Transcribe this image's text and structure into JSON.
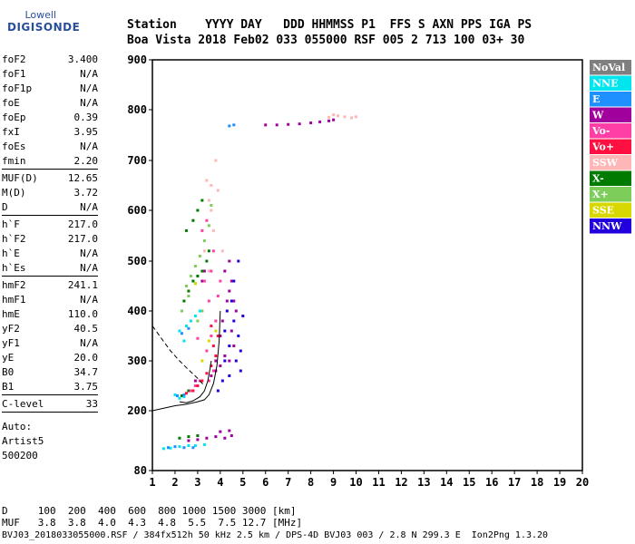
{
  "logo": {
    "line1": "Lowell",
    "line2": "DIGISONDE"
  },
  "header": {
    "line1": "Station    YYYY DAY   DDD HHMMSS P1  FFS S AXN PPS IGA PS",
    "line2": "Boa Vista 2018 Feb02 033 055000 RSF 005 2 713 100 03+ 30"
  },
  "params_a": [
    {
      "k": "foF2",
      "v": "3.400"
    },
    {
      "k": "foF1",
      "v": "N/A"
    },
    {
      "k": "foF1p",
      "v": "N/A"
    },
    {
      "k": "foE",
      "v": "N/A"
    },
    {
      "k": "foEp",
      "v": "0.39"
    },
    {
      "k": "fxI",
      "v": "3.95"
    },
    {
      "k": "foEs",
      "v": "N/A"
    },
    {
      "k": "fmin",
      "v": "2.20"
    }
  ],
  "params_b": [
    {
      "k": "MUF(D)",
      "v": "12.65"
    },
    {
      "k": "M(D)",
      "v": "3.72"
    },
    {
      "k": "D",
      "v": "N/A"
    }
  ],
  "params_c": [
    {
      "k": "h`F",
      "v": "217.0"
    },
    {
      "k": "h`F2",
      "v": "217.0"
    },
    {
      "k": "h`E",
      "v": "N/A"
    },
    {
      "k": "h`Es",
      "v": "N/A"
    }
  ],
  "params_d": [
    {
      "k": "hmF2",
      "v": "241.1"
    },
    {
      "k": "hmF1",
      "v": "N/A"
    },
    {
      "k": "hmE",
      "v": "110.0"
    },
    {
      "k": "yF2",
      "v": "40.5"
    },
    {
      "k": "yF1",
      "v": "N/A"
    },
    {
      "k": "yE",
      "v": "20.0"
    },
    {
      "k": "B0",
      "v": "34.7"
    },
    {
      "k": "B1",
      "v": "3.75"
    }
  ],
  "clevel": {
    "k": "C-level",
    "v": "33"
  },
  "auto": {
    "l1": "Auto:",
    "l2": "Artist5",
    "l3": "500200"
  },
  "footer": {
    "d_row": "D     100  200  400  600  800 1000 1500 3000 [km]",
    "muf_row": "MUF   3.8  3.8  4.0  4.3  4.8  5.5  7.5 12.7 [MHz]",
    "info": "BVJ03_2018033055000.RSF / 384fx512h 50 kHz 2.5 km / DPS-4D BVJ03 003 / 2.8 N 299.3 E  Ion2Png 1.3.20"
  },
  "legend": [
    {
      "label": "NoVal",
      "color": "#7f7f7f"
    },
    {
      "label": "NNE",
      "color": "#00e5ee"
    },
    {
      "label": "E",
      "color": "#1e90ff"
    },
    {
      "label": "W",
      "color": "#a0009b"
    },
    {
      "label": "Vo-",
      "color": "#ff3fa6"
    },
    {
      "label": "Vo+",
      "color": "#ff1040"
    },
    {
      "label": "SSW",
      "color": "#ffb6b6"
    },
    {
      "label": "X-",
      "color": "#007b00"
    },
    {
      "label": "X+",
      "color": "#7ccd5a"
    },
    {
      "label": "SSE",
      "color": "#d8d800"
    },
    {
      "label": "NNW",
      "color": "#2200dd"
    }
  ],
  "chart_data": {
    "type": "scatter",
    "xlim": [
      1,
      20
    ],
    "ylim": [
      80,
      900
    ],
    "x_ticks": [
      1,
      2,
      3,
      4,
      5,
      6,
      7,
      8,
      9,
      10,
      11,
      12,
      13,
      14,
      15,
      16,
      17,
      18,
      19,
      20
    ],
    "y_ticks": [
      80,
      200,
      300,
      400,
      500,
      600,
      700,
      800,
      900
    ],
    "series": [
      {
        "name": "W",
        "color": "#a0009b",
        "points": [
          [
            6.0,
            770
          ],
          [
            6.5,
            770
          ],
          [
            7.0,
            771
          ],
          [
            7.5,
            772
          ],
          [
            8.0,
            774
          ],
          [
            8.4,
            776
          ],
          [
            8.8,
            778
          ],
          [
            9.0,
            780
          ],
          [
            3.8,
            300
          ],
          [
            4.0,
            350
          ],
          [
            4.1,
            380
          ],
          [
            4.3,
            420
          ],
          [
            4.4,
            440
          ],
          [
            4.5,
            460
          ],
          [
            4.6,
            420
          ],
          [
            4.5,
            360
          ],
          [
            4.7,
            400
          ],
          [
            4.2,
            310
          ],
          [
            4.4,
            300
          ],
          [
            4.6,
            330
          ],
          [
            3.6,
            270
          ],
          [
            3.8,
            280
          ],
          [
            4.0,
            290
          ],
          [
            4.2,
            480
          ],
          [
            4.4,
            500
          ],
          [
            2.6,
            140
          ],
          [
            3.0,
            142
          ],
          [
            3.4,
            145
          ],
          [
            3.8,
            148
          ],
          [
            4.2,
            145
          ],
          [
            4.5,
            150
          ],
          [
            4.4,
            160
          ],
          [
            4.0,
            158
          ],
          [
            2.9,
            260
          ],
          [
            3.2,
            460
          ],
          [
            3.3,
            480
          ]
        ]
      },
      {
        "name": "SSW",
        "color": "#ffb6b6",
        "points": [
          [
            8.8,
            785
          ],
          [
            9.0,
            790
          ],
          [
            9.2,
            788
          ],
          [
            9.5,
            786
          ],
          [
            9.8,
            784
          ],
          [
            10.0,
            786
          ],
          [
            3.5,
            620
          ],
          [
            3.6,
            650
          ],
          [
            3.8,
            700
          ],
          [
            3.7,
            560
          ],
          [
            3.3,
            520
          ],
          [
            3.5,
            480
          ],
          [
            3.6,
            600
          ],
          [
            3.9,
            640
          ],
          [
            3.4,
            660
          ],
          [
            4.1,
            520
          ]
        ]
      },
      {
        "name": "NNW",
        "color": "#2200dd",
        "points": [
          [
            4.2,
            300
          ],
          [
            4.4,
            330
          ],
          [
            4.6,
            380
          ],
          [
            4.8,
            350
          ],
          [
            4.5,
            420
          ],
          [
            4.3,
            400
          ],
          [
            4.7,
            300
          ],
          [
            4.9,
            280
          ],
          [
            4.1,
            260
          ],
          [
            3.9,
            240
          ],
          [
            4.6,
            460
          ],
          [
            4.8,
            500
          ],
          [
            4.4,
            270
          ],
          [
            4.2,
            360
          ],
          [
            4.9,
            320
          ],
          [
            5.0,
            390
          ]
        ]
      },
      {
        "name": "X-",
        "color": "#007b00",
        "points": [
          [
            2.4,
            420
          ],
          [
            2.6,
            440
          ],
          [
            2.8,
            460
          ],
          [
            3.0,
            470
          ],
          [
            3.2,
            480
          ],
          [
            3.4,
            500
          ],
          [
            3.5,
            520
          ],
          [
            2.5,
            560
          ],
          [
            2.8,
            580
          ],
          [
            3.0,
            600
          ],
          [
            3.2,
            620
          ],
          [
            2.3,
            230
          ],
          [
            2.6,
            240
          ],
          [
            2.9,
            250
          ],
          [
            2.2,
            145
          ],
          [
            2.6,
            148
          ],
          [
            3.0,
            150
          ]
        ]
      },
      {
        "name": "X+",
        "color": "#7ccd5a",
        "points": [
          [
            2.5,
            450
          ],
          [
            2.7,
            470
          ],
          [
            2.9,
            490
          ],
          [
            3.1,
            510
          ],
          [
            2.3,
            400
          ],
          [
            2.6,
            430
          ],
          [
            2.9,
            455
          ],
          [
            3.3,
            540
          ],
          [
            3.5,
            570
          ],
          [
            3.6,
            610
          ],
          [
            3.0,
            380
          ],
          [
            3.2,
            400
          ]
        ]
      },
      {
        "name": "NNE",
        "color": "#00e5ee",
        "points": [
          [
            2.2,
            360
          ],
          [
            2.5,
            370
          ],
          [
            2.7,
            380
          ],
          [
            2.9,
            390
          ],
          [
            3.1,
            400
          ],
          [
            2.4,
            340
          ],
          [
            2.0,
            232
          ],
          [
            2.2,
            225
          ],
          [
            2.4,
            228
          ],
          [
            1.8,
            125
          ],
          [
            2.2,
            128
          ],
          [
            2.6,
            130
          ],
          [
            1.5,
            124
          ],
          [
            2.9,
            130
          ],
          [
            3.3,
            132
          ]
        ]
      },
      {
        "name": "E",
        "color": "#1e90ff",
        "points": [
          [
            4.4,
            768
          ],
          [
            4.6,
            770
          ],
          [
            2.3,
            355
          ],
          [
            2.6,
            365
          ],
          [
            2.0,
            128
          ],
          [
            2.4,
            126
          ],
          [
            2.8,
            126
          ],
          [
            1.7,
            126
          ],
          [
            2.1,
            230
          ],
          [
            2.4,
            232
          ]
        ]
      },
      {
        "name": "Vo-",
        "color": "#ff3fa6",
        "points": [
          [
            3.4,
            320
          ],
          [
            3.6,
            350
          ],
          [
            3.8,
            380
          ],
          [
            3.5,
            420
          ],
          [
            3.3,
            460
          ],
          [
            3.6,
            480
          ],
          [
            3.7,
            520
          ],
          [
            3.2,
            560
          ],
          [
            3.4,
            580
          ],
          [
            3.9,
            430
          ],
          [
            4.0,
            460
          ],
          [
            3.5,
            260
          ],
          [
            3.7,
            280
          ],
          [
            3.1,
            260
          ],
          [
            2.9,
            250
          ],
          [
            2.7,
            240
          ],
          [
            3.0,
            345
          ]
        ]
      },
      {
        "name": "Vo+",
        "color": "#ff1040",
        "points": [
          [
            3.0,
            250
          ],
          [
            3.2,
            260
          ],
          [
            3.4,
            275
          ],
          [
            3.6,
            290
          ],
          [
            3.8,
            310
          ],
          [
            3.7,
            330
          ],
          [
            3.9,
            350
          ],
          [
            3.6,
            370
          ],
          [
            2.8,
            240
          ],
          [
            2.5,
            235
          ]
        ]
      },
      {
        "name": "SSE",
        "color": "#d8d800",
        "points": [
          [
            3.5,
            340
          ],
          [
            3.8,
            360
          ],
          [
            3.2,
            300
          ],
          [
            2.9,
            455
          ]
        ]
      }
    ],
    "curves": [
      {
        "name": "virtual-height-trace",
        "style": "solid",
        "points": [
          [
            1.0,
            200
          ],
          [
            1.5,
            205
          ],
          [
            2.0,
            210
          ],
          [
            2.5,
            213
          ],
          [
            3.0,
            218
          ],
          [
            3.3,
            222
          ],
          [
            3.5,
            232
          ],
          [
            3.7,
            255
          ],
          [
            3.85,
            290
          ],
          [
            3.95,
            340
          ],
          [
            4.0,
            400
          ]
        ]
      },
      {
        "name": "extrapolated-profile",
        "style": "dashed",
        "points": [
          [
            1.0,
            370
          ],
          [
            1.4,
            345
          ],
          [
            1.8,
            320
          ],
          [
            2.2,
            300
          ],
          [
            2.6,
            282
          ],
          [
            3.0,
            265
          ],
          [
            3.3,
            250
          ]
        ]
      },
      {
        "name": "true-height-profile",
        "style": "solid",
        "points": [
          [
            2.2,
            218
          ],
          [
            2.5,
            216
          ],
          [
            2.8,
            220
          ],
          [
            3.1,
            228
          ],
          [
            3.3,
            240
          ],
          [
            3.45,
            260
          ],
          [
            3.55,
            285
          ],
          [
            3.6,
            300
          ]
        ]
      }
    ]
  }
}
